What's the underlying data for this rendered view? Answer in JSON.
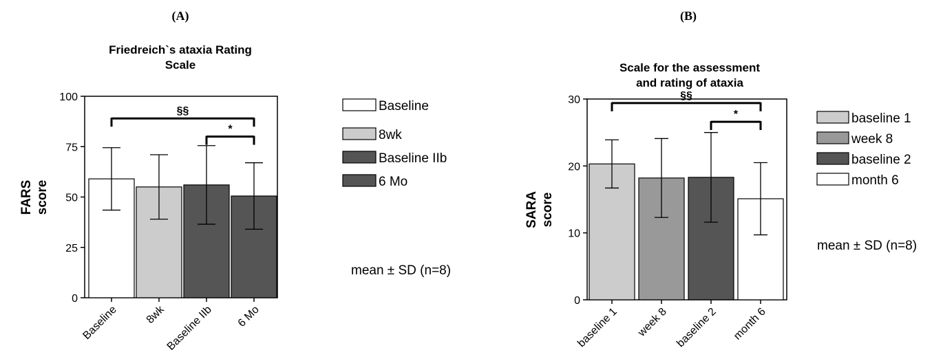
{
  "chart_data": [
    {
      "panel": "(A)",
      "type": "bar",
      "title": "Friedreich`s ataxia Rating Scale",
      "title_lines": [
        "Friedreich`s ataxia Rating",
        "Scale"
      ],
      "ylabel_lines": [
        "FARS",
        "score"
      ],
      "ylim": [
        0,
        100
      ],
      "yticks": [
        0,
        25,
        50,
        75,
        100
      ],
      "categories": [
        "Baseline",
        "8wk",
        "Baseline IIb",
        "6 Mo"
      ],
      "values": [
        59,
        55,
        56,
        50.5
      ],
      "sd": [
        15.5,
        16,
        19.5,
        16.5
      ],
      "colors": [
        "#ffffff",
        "#cccccc",
        "#555555",
        "#555555"
      ],
      "legend": [
        {
          "label": "Baseline",
          "color": "#ffffff"
        },
        {
          "label": "8wk",
          "color": "#cccccc"
        },
        {
          "label": "Baseline IIb",
          "color": "#555555"
        },
        {
          "label": "6 Mo",
          "color": "#555555"
        }
      ],
      "annotations": [
        {
          "text": "§§",
          "from": 0,
          "to": 3,
          "y": 89
        },
        {
          "text": "*",
          "from": 2,
          "to": 3,
          "y": 80
        }
      ],
      "note": "mean ± SD (n=8)"
    },
    {
      "panel": "(B)",
      "type": "bar",
      "title": "Scale for the assessment and rating of ataxia",
      "title_lines": [
        "Scale for the assessment",
        "and rating of ataxia"
      ],
      "ylabel_lines": [
        "SARA",
        "score"
      ],
      "ylim": [
        0,
        30
      ],
      "yticks": [
        0,
        10,
        20,
        30
      ],
      "categories": [
        "baseline 1",
        "week 8",
        "baseline 2",
        "month 6"
      ],
      "values": [
        20.3,
        18.2,
        18.3,
        15.1
      ],
      "sd": [
        3.6,
        5.9,
        6.7,
        5.4
      ],
      "colors": [
        "#cccccc",
        "#999999",
        "#555555",
        "#ffffff"
      ],
      "legend": [
        {
          "label": "baseline 1",
          "color": "#cccccc"
        },
        {
          "label": "week 8",
          "color": "#999999"
        },
        {
          "label": "baseline 2",
          "color": "#555555"
        },
        {
          "label": "month 6",
          "color": "#ffffff"
        }
      ],
      "annotations": [
        {
          "text": "§§",
          "from": 0,
          "to": 3,
          "y": 29.4
        },
        {
          "text": "*",
          "from": 2,
          "to": 3,
          "y": 26.6
        }
      ],
      "note": "mean ± SD (n=8)"
    }
  ]
}
